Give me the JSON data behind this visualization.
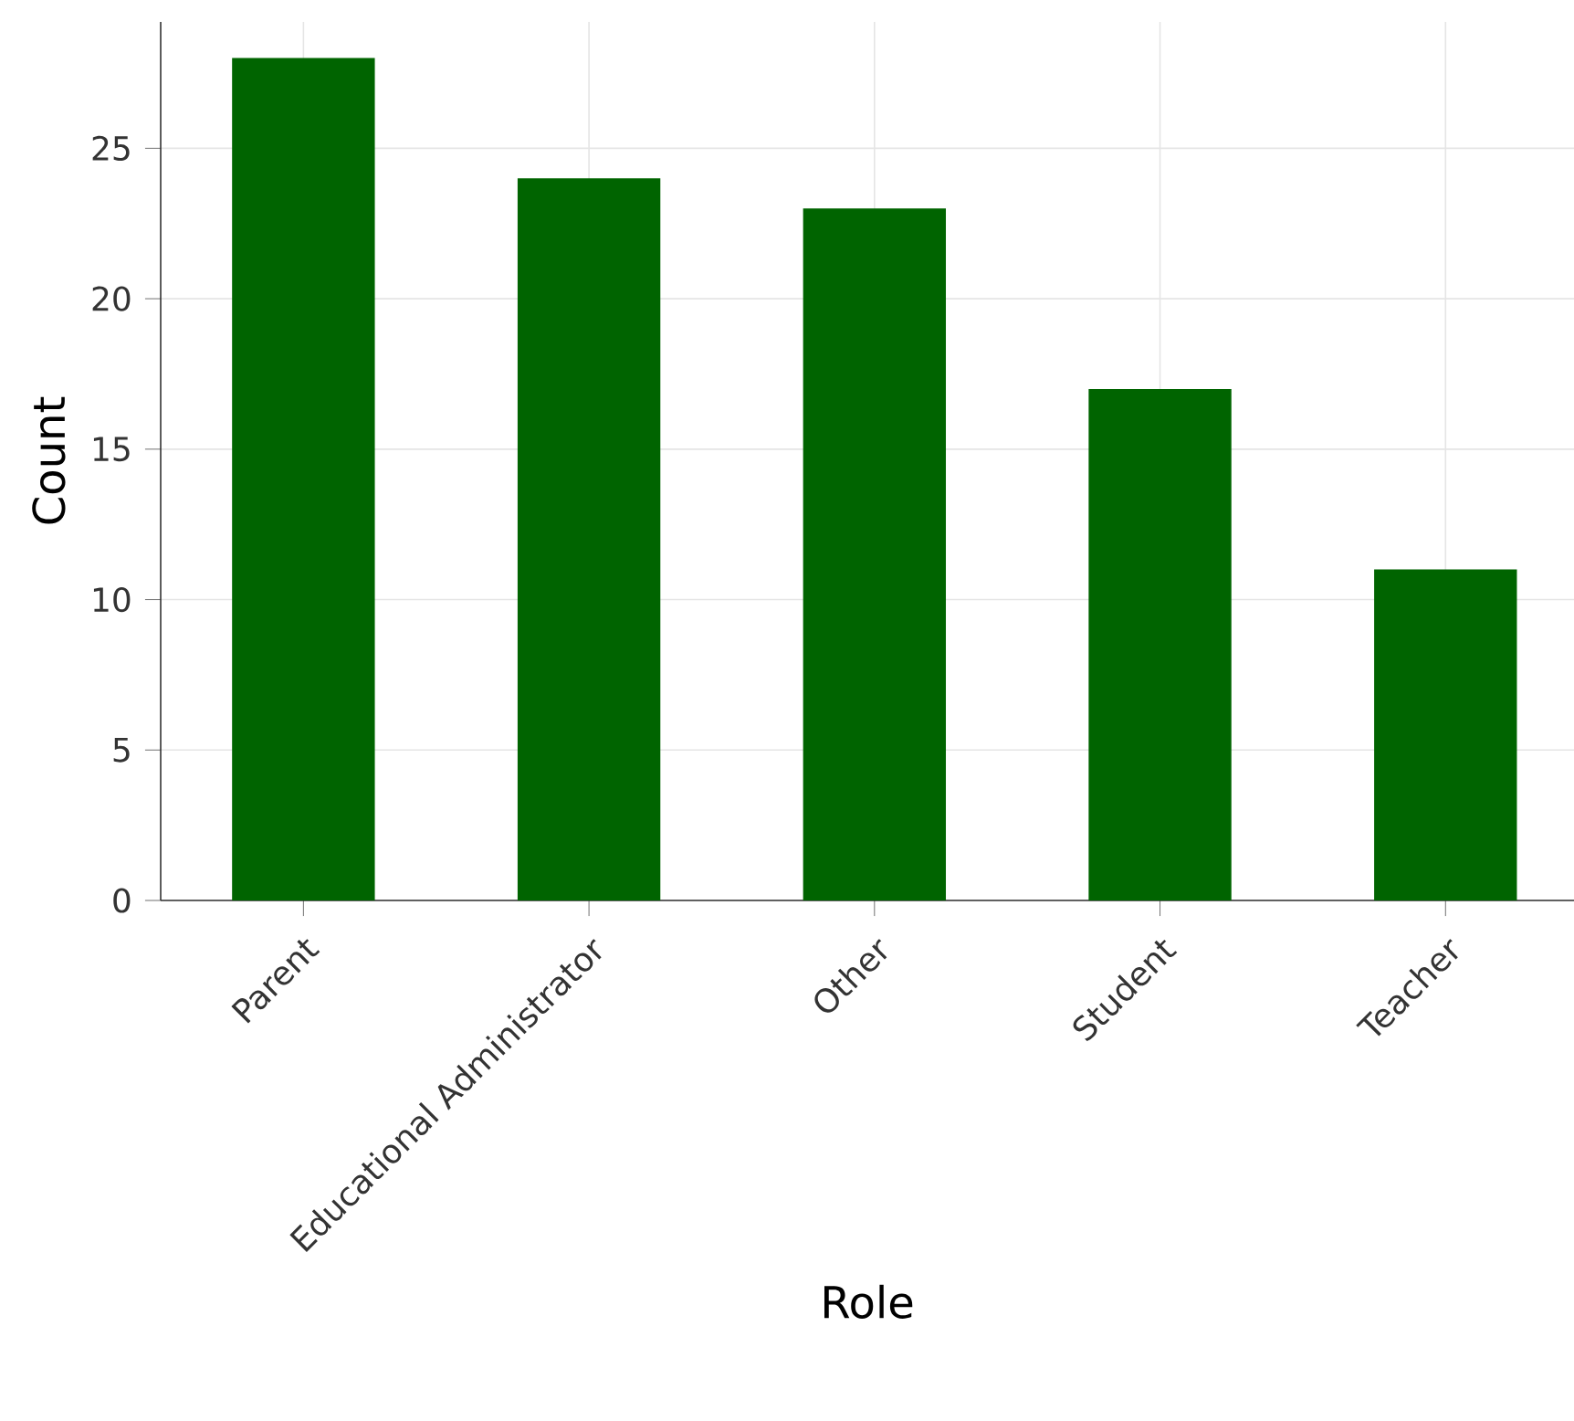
{
  "chart_data": {
    "type": "bar",
    "xlabel": "Role",
    "ylabel": "Count",
    "categories": [
      "Parent",
      "Educational Administrator",
      "Other",
      "Student",
      "Teacher"
    ],
    "values": [
      28,
      24,
      23,
      17,
      11
    ],
    "color": "#006400",
    "ylim": [
      0,
      29.2
    ],
    "yticks": [
      0,
      5,
      10,
      15,
      20,
      25
    ],
    "grid": true
  }
}
